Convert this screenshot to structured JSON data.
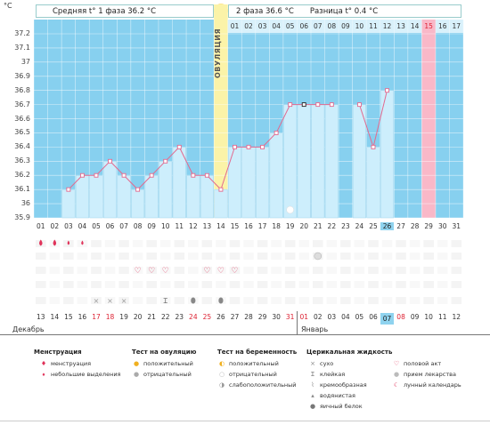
{
  "y_unit": "°C",
  "y_ticks": [
    "37.2",
    "37.1",
    "37",
    "36.9",
    "36.8",
    "36.7",
    "36.6",
    "36.5",
    "36.4",
    "36.3",
    "36.2",
    "36.1",
    "36",
    "35.9"
  ],
  "header": {
    "phase1": "Средняя t° 1 фаза 36.2 °C",
    "phase2": "2 фаза 36.6 °C",
    "diff": "Разница t° 0.4 °C"
  },
  "ovulation_label": "ОВУЛЯЦИЯ",
  "cycle_days_top": [
    "01",
    "02",
    "03",
    "04",
    "05",
    "06",
    "07",
    "08",
    "09",
    "10",
    "11",
    "12",
    "13",
    "14",
    "15",
    "16",
    "17"
  ],
  "cycle_days_bottom": [
    "01",
    "02",
    "03",
    "04",
    "05",
    "06",
    "07",
    "08",
    "09",
    "10",
    "11",
    "12",
    "13",
    "14",
    "15",
    "16",
    "17",
    "18",
    "19",
    "20",
    "21",
    "22",
    "23",
    "24",
    "25",
    "26",
    "27",
    "28",
    "29",
    "30",
    "31"
  ],
  "dates": [
    "13",
    "14",
    "15",
    "16",
    "17",
    "18",
    "19",
    "20",
    "21",
    "22",
    "23",
    "24",
    "25",
    "26",
    "27",
    "28",
    "29",
    "30",
    "31",
    "01",
    "02",
    "03",
    "04",
    "05",
    "06",
    "07",
    "08",
    "09",
    "10",
    "11",
    "12"
  ],
  "red_dates": [
    4,
    5,
    11,
    12,
    18,
    19,
    26
  ],
  "month_dec": "Декабрь",
  "month_jan": "Январь",
  "chart_data": {
    "type": "line",
    "x": [
      3,
      4,
      5,
      6,
      7,
      8,
      9,
      10,
      11,
      12,
      13,
      14,
      15,
      16,
      17,
      18,
      19,
      20,
      21,
      22,
      23,
      24,
      25,
      26
    ],
    "values": [
      36.1,
      36.2,
      36.2,
      36.3,
      36.2,
      36.1,
      36.2,
      36.3,
      36.4,
      36.2,
      36.2,
      36.1,
      36.4,
      36.4,
      36.4,
      36.5,
      36.7,
      36.7,
      36.7,
      36.7,
      null,
      36.7,
      36.4,
      36.8
    ],
    "ylim": [
      35.9,
      37.2
    ],
    "ovulation_day": 14,
    "highlight_day": 29,
    "today_day": 26
  },
  "legend": {
    "menses": {
      "title": "Менструация",
      "items": [
        "менструация",
        "небольшие выделения"
      ]
    },
    "ovtest": {
      "title": "Тест на овуляцию",
      "items": [
        "положительный",
        "отрицательный"
      ]
    },
    "pregtest": {
      "title": "Тест на беременность",
      "items": [
        "положительный",
        "отрицательный",
        "слабоположительный"
      ]
    },
    "cervical": {
      "title": "Церикальная жидкость",
      "items": [
        "сухо",
        "клейкая",
        "кремообразная",
        "водянистая",
        "яичный белок"
      ]
    },
    "other": {
      "items": [
        "половой акт",
        "прием лекарства",
        "лунный календарь"
      ]
    }
  },
  "colors": {
    "blue": "#87d0ef",
    "paleblue": "#cdeefc",
    "ovulation": "#fbf3a8",
    "pink": "#f9b8c8",
    "line": "#e36a8f",
    "grid": "#ffffff"
  }
}
